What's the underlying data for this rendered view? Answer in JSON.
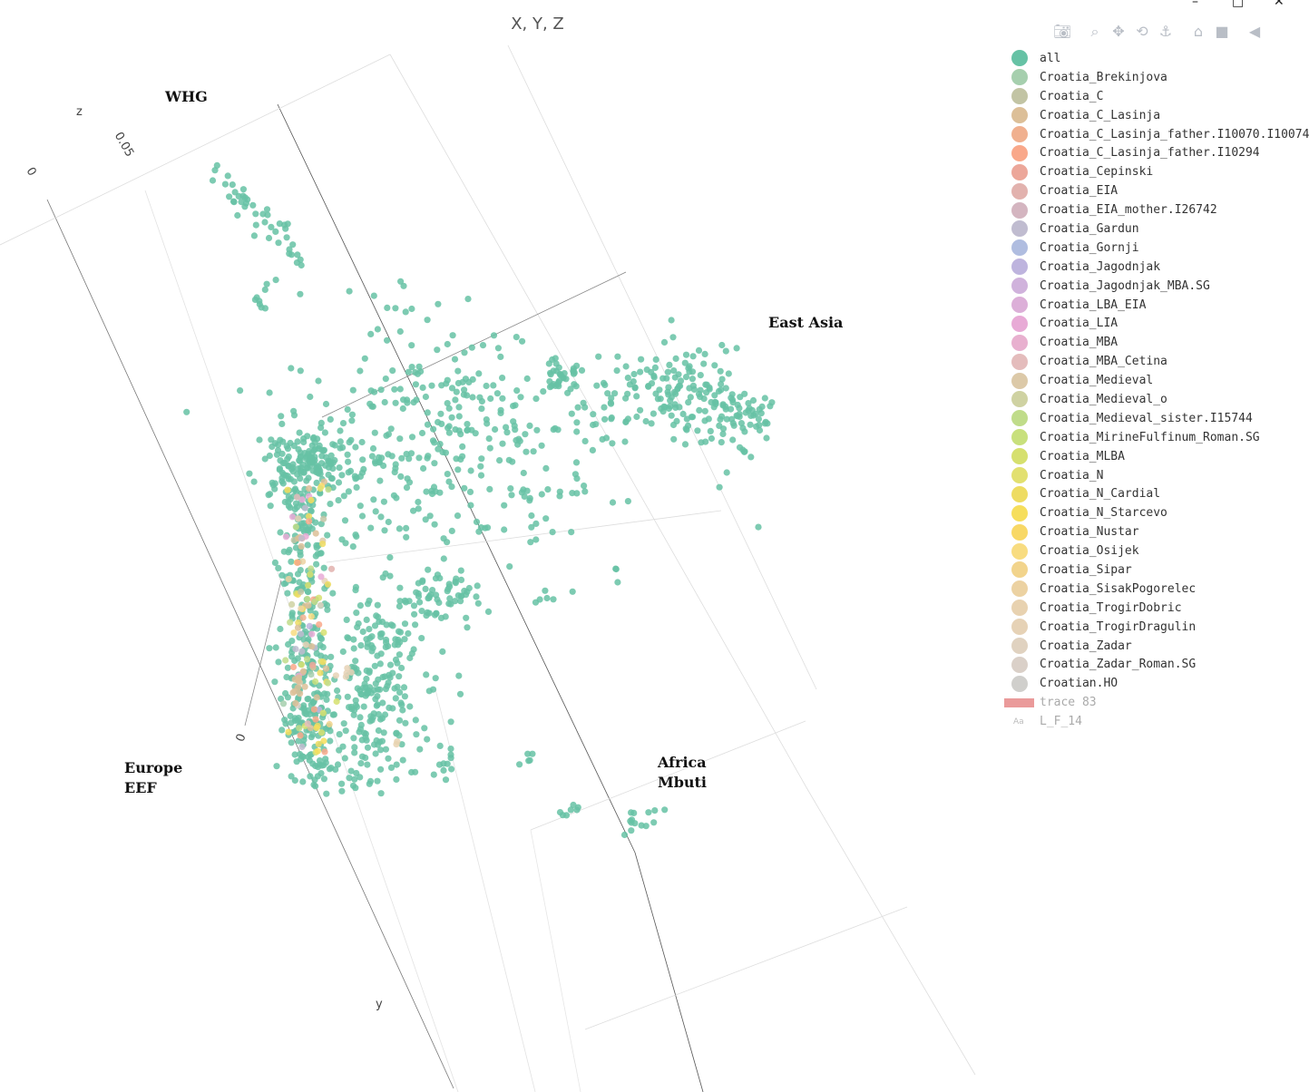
{
  "chart_data": {
    "type": "scatter",
    "title": "X, Y, Z",
    "axis_labels": {
      "z": "z",
      "y": "y"
    },
    "tick_labels": [
      "0.05",
      "0",
      "0"
    ],
    "annotations": [
      "WHG",
      "East Asia",
      "Europe\nEEF",
      "Africa\nMbuti"
    ],
    "series": [
      {
        "name": "all",
        "color": "#66c2a5"
      },
      {
        "name": "Croatia_Brekinjova",
        "color": "#a6cfae"
      },
      {
        "name": "Croatia_C",
        "color": "#c2c4a4"
      },
      {
        "name": "Croatia_C_Lasinja",
        "color": "#dcbf98"
      },
      {
        "name": "Croatia_C_Lasinja_father.I10070.I10074",
        "color": "#f0b08f"
      },
      {
        "name": "Croatia_C_Lasinja_father.I10294",
        "color": "#f9a88a"
      },
      {
        "name": "Croatia_Cepinski",
        "color": "#eca79a"
      },
      {
        "name": "Croatia_EIA",
        "color": "#e2b2ae"
      },
      {
        "name": "Croatia_EIA_mother.I26742",
        "color": "#d4b5c0"
      },
      {
        "name": "Croatia_Gardun",
        "color": "#c0bcd0"
      },
      {
        "name": "Croatia_Gornji",
        "color": "#b0bde0"
      },
      {
        "name": "Croatia_Jagodnjak",
        "color": "#beb4de"
      },
      {
        "name": "Croatia_Jagodnjak_MBA.SG",
        "color": "#d0b2dc"
      },
      {
        "name": "Croatia_LBA_EIA",
        "color": "#dcafd8"
      },
      {
        "name": "Croatia_LIA",
        "color": "#e8aad6"
      },
      {
        "name": "Croatia_MBA",
        "color": "#e8b0cf"
      },
      {
        "name": "Croatia_MBA_Cetina",
        "color": "#e4bcbc"
      },
      {
        "name": "Croatia_Medieval",
        "color": "#dcc9a8"
      },
      {
        "name": "Croatia_Medieval_o",
        "color": "#cfd2a2"
      },
      {
        "name": "Croatia_Medieval_sister.I15744",
        "color": "#c0dc8a"
      },
      {
        "name": "Croatia_MirineFulfinum_Roman.SG",
        "color": "#c8e07c"
      },
      {
        "name": "Croatia_MLBA",
        "color": "#d6e06e"
      },
      {
        "name": "Croatia_N",
        "color": "#e2e070"
      },
      {
        "name": "Croatia_N_Cardial",
        "color": "#eedc62"
      },
      {
        "name": "Croatia_N_Starcevo",
        "color": "#f6de5c"
      },
      {
        "name": "Croatia_Nustar",
        "color": "#f8d866"
      },
      {
        "name": "Croatia_Osijek",
        "color": "#f8dc80"
      },
      {
        "name": "Croatia_Sipar",
        "color": "#f2d48c"
      },
      {
        "name": "Croatia_SisakPogorelec",
        "color": "#ecd2a2"
      },
      {
        "name": "Croatia_TrogirDobric",
        "color": "#e8d2b0"
      },
      {
        "name": "Croatia_TrogirDragulin",
        "color": "#e6d2b6"
      },
      {
        "name": "Croatia_Zadar",
        "color": "#e0d2c0"
      },
      {
        "name": "Croatia_Zadar_Roman.SG",
        "color": "#dad0c8"
      },
      {
        "name": "Croatian.HO",
        "color": "#d0cfcc"
      },
      {
        "name": "trace 83",
        "color": "#ea9a9a"
      },
      {
        "name": "L_F_14",
        "color": "#bbbbbb"
      }
    ]
  },
  "toolbar": {
    "icons": [
      "camera-icon",
      "zoom-icon",
      "pan-icon",
      "orbit-icon",
      "turntable-icon",
      "home-icon",
      "video-icon",
      "tag-icon"
    ]
  }
}
